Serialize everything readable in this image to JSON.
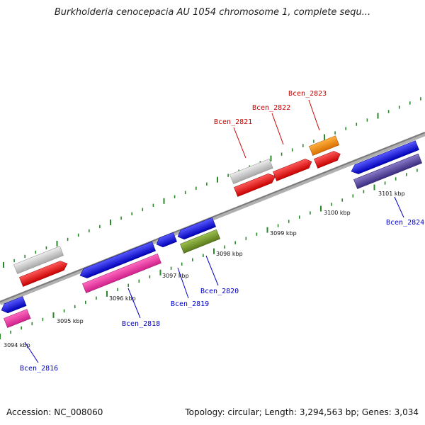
{
  "title": "Burkholderia cenocepacia AU 1054 chromosome 1, complete sequ...",
  "accession": "Accession: NC_008060",
  "stats": "Topology: circular; Length: 3,294,563 bp; Genes: 3,034",
  "colors": {
    "backbone": "#8c8c8c",
    "tick": "#2a8a2a",
    "label_forward": "#cc0000",
    "label_reverse": "#0000cc"
  },
  "kbp_labels": [
    "3094 kbp",
    "3095 kbp",
    "3096 kbp",
    "3097 kbp",
    "3098 kbp",
    "3099 kbp",
    "3100 kbp",
    "3101 kbp"
  ],
  "gene_labels": [
    {
      "name": "Bcen_2821",
      "strand": "forward"
    },
    {
      "name": "Bcen_2822",
      "strand": "forward"
    },
    {
      "name": "Bcen_2823",
      "strand": "forward"
    },
    {
      "name": "Bcen_2816",
      "strand": "reverse"
    },
    {
      "name": "Bcen_2818",
      "strand": "reverse"
    },
    {
      "name": "Bcen_2819",
      "strand": "reverse"
    },
    {
      "name": "Bcen_2820",
      "strand": "reverse"
    },
    {
      "name": "Bcen_2824",
      "strand": "reverse"
    }
  ]
}
